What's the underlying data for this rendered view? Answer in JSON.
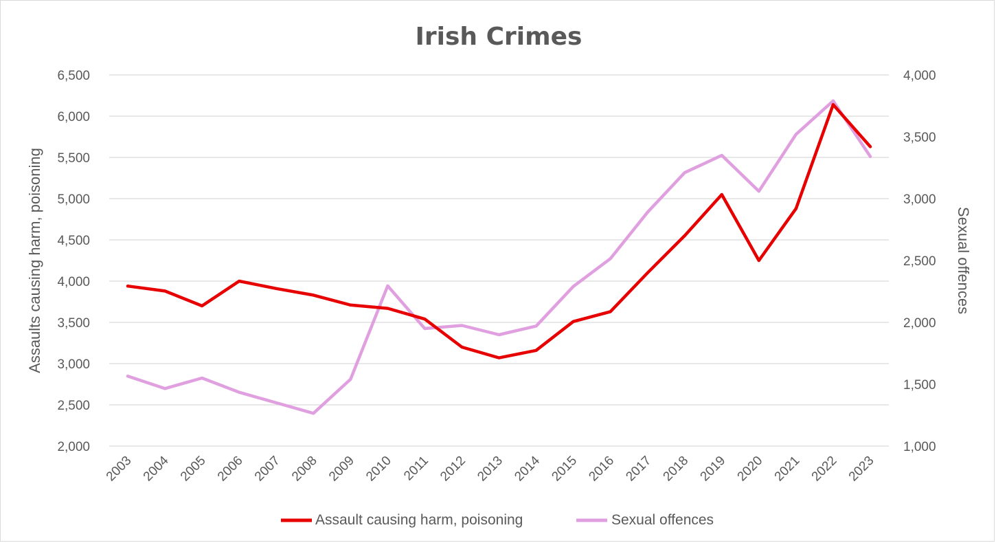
{
  "chart_data": {
    "type": "line",
    "title": "Irish Crimes",
    "categories": [
      "2003",
      "2004",
      "2005",
      "2006",
      "2007",
      "2008",
      "2009",
      "2010",
      "2011",
      "2012",
      "2013",
      "2014",
      "2015",
      "2016",
      "2017",
      "2018",
      "2019",
      "2020",
      "2021",
      "2022",
      "2023"
    ],
    "ylabel_left": "Assaults causing harm, poisoning",
    "ylabel_right": "Sexual offences",
    "ylim_left": [
      2000,
      6500
    ],
    "ylim_right": [
      1000,
      4000
    ],
    "yticks_left": [
      "2,000",
      "2,500",
      "3,000",
      "3,500",
      "4,000",
      "4,500",
      "5,000",
      "5,500",
      "6,000",
      "6,500"
    ],
    "yticks_right": [
      "1,000",
      "1,500",
      "2,000",
      "2,500",
      "3,000",
      "3,500",
      "4,000"
    ],
    "grid": true,
    "legend_position": "bottom",
    "series": [
      {
        "name": "Assault causing harm, poisoning",
        "axis": "left",
        "color": "#e60000",
        "values": [
          3940,
          3880,
          3700,
          4000,
          3910,
          3830,
          3710,
          3670,
          3540,
          3200,
          3070,
          3160,
          3510,
          3630,
          4100,
          4550,
          5050,
          4250,
          4880,
          6140,
          5630
        ]
      },
      {
        "name": "Sexual offences",
        "axis": "right",
        "color": "#e0a0e0",
        "values": [
          1565,
          1465,
          1550,
          1435,
          1350,
          1265,
          1540,
          2295,
          1950,
          1975,
          1900,
          1970,
          2290,
          2515,
          2890,
          3210,
          3350,
          3060,
          3520,
          3790,
          3340
        ]
      }
    ]
  }
}
